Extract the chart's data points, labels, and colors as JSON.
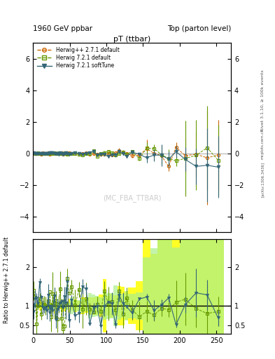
{
  "title_left": "1960 GeV ppbar",
  "title_right": "Top (parton level)",
  "plot_title": "pT (ttbar)",
  "ylabel_ratio": "Ratio to Herwig++ 2.7.1 default",
  "right_label": "Rivet 3.1.10, ≥ 100k events",
  "arxiv_label": "[arXiv:1306.3436]",
  "mcfba_label": "(MC_FBA_TTBAR)",
  "mcplots_label": "mcplots.cern.ch",
  "legend": [
    "Herwig++ 2.7.1 default",
    "Herwig 7.2.1 default",
    "Herwig 7.2.1 softTune"
  ],
  "colors": [
    "#cc6600",
    "#669900",
    "#336677"
  ],
  "ylim_main": [
    -5,
    7
  ],
  "ylim_ratio": [
    0.27,
    2.73
  ],
  "xmin": 0,
  "xmax": 270,
  "yticks_main": [
    -4,
    -2,
    0,
    2,
    4,
    6
  ],
  "yticks_ratio": [
    0.5,
    1.0,
    2.0
  ],
  "xticks": [
    0,
    50,
    100,
    150,
    200,
    250
  ]
}
